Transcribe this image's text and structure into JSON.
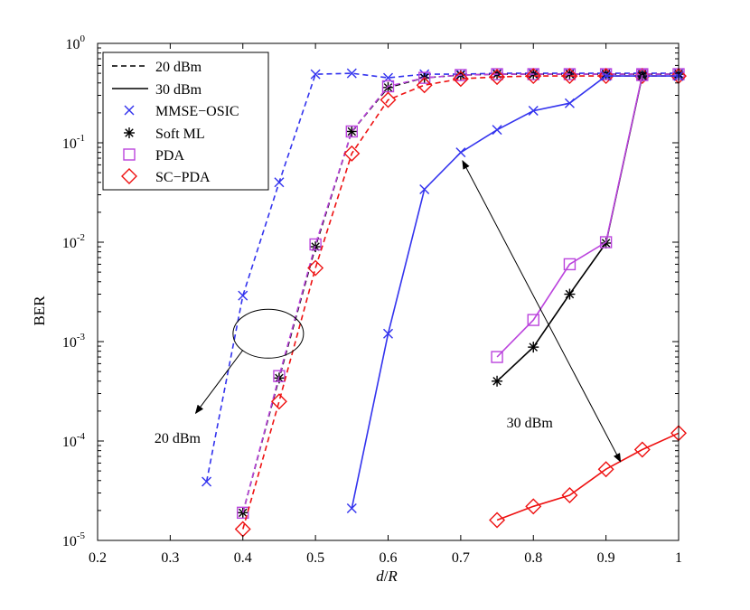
{
  "chart_data": {
    "type": "line",
    "xlabel_parts": [
      "d",
      "/",
      "R"
    ],
    "ylabel": "BER",
    "xlim": [
      0.2,
      1.0
    ],
    "ylim": [
      1e-05,
      1
    ],
    "yscale": "log",
    "grid": false,
    "legend_placement": "top-left",
    "xticks": [
      "0.2",
      "0.3",
      "0.4",
      "0.5",
      "0.6",
      "0.7",
      "0.8",
      "0.9",
      "1"
    ],
    "yticks": [
      {
        "base": "10",
        "exp": "0",
        "value": 1
      },
      {
        "base": "10",
        "exp": "-1",
        "value": 0.1
      },
      {
        "base": "10",
        "exp": "-2",
        "value": 0.01
      },
      {
        "base": "10",
        "exp": "-3",
        "value": 0.001
      },
      {
        "base": "10",
        "exp": "-4",
        "value": 0.0001
      },
      {
        "base": "10",
        "exp": "-5",
        "value": 1e-05
      }
    ],
    "legend": {
      "line_entries": [
        {
          "label": "20 dBm",
          "dash": "dashed"
        },
        {
          "label": "30 dBm",
          "dash": "solid"
        }
      ],
      "marker_entries": [
        {
          "label": "MMSE−OSIC",
          "marker": "x",
          "color": "#3333ee"
        },
        {
          "label": "Soft ML",
          "marker": "star",
          "color": "#000000"
        },
        {
          "label": "PDA",
          "marker": "square",
          "color": "#bb44dd"
        },
        {
          "label": "SC−PDA",
          "marker": "diamond",
          "color": "#ee1111"
        }
      ]
    },
    "series": [
      {
        "scheme": "MMSE−OSIC",
        "power": "20 dBm",
        "dash": "dashed",
        "marker": "x",
        "color": "#3333ee",
        "x": [
          0.35,
          0.4,
          0.45,
          0.5,
          0.55,
          0.6,
          0.65,
          0.7,
          0.75,
          0.8,
          0.85,
          0.9,
          0.95,
          1.0
        ],
        "y": [
          3.9e-05,
          0.0029,
          0.04,
          0.49,
          0.5,
          0.45,
          0.49,
          0.49,
          0.5,
          0.5,
          0.5,
          0.5,
          0.5,
          0.5
        ]
      },
      {
        "scheme": "Soft ML",
        "power": "20 dBm",
        "dash": "dashed",
        "marker": "star",
        "color": "#000000",
        "x": [
          0.4,
          0.45,
          0.5,
          0.55,
          0.6,
          0.65,
          0.7,
          0.75,
          0.8,
          0.85,
          0.9,
          0.95,
          1.0
        ],
        "y": [
          1.9e-05,
          0.00043,
          0.009,
          0.13,
          0.36,
          0.45,
          0.48,
          0.49,
          0.49,
          0.49,
          0.49,
          0.49,
          0.49
        ]
      },
      {
        "scheme": "PDA",
        "power": "20 dBm",
        "dash": "dashed",
        "marker": "square",
        "color": "#bb44dd",
        "x": [
          0.4,
          0.45,
          0.5,
          0.55,
          0.6,
          0.65,
          0.7,
          0.75,
          0.8,
          0.85,
          0.9,
          0.95,
          1.0
        ],
        "y": [
          1.9e-05,
          0.00045,
          0.0095,
          0.13,
          0.37,
          0.45,
          0.48,
          0.49,
          0.49,
          0.49,
          0.49,
          0.49,
          0.49
        ]
      },
      {
        "scheme": "SC−PDA",
        "power": "20 dBm",
        "dash": "dashed",
        "marker": "diamond",
        "color": "#ee1111",
        "x": [
          0.4,
          0.45,
          0.5,
          0.55,
          0.6,
          0.65,
          0.7,
          0.75,
          0.8,
          0.85,
          0.9,
          0.95,
          1.0
        ],
        "y": [
          1.3e-05,
          0.00025,
          0.0055,
          0.078,
          0.27,
          0.38,
          0.44,
          0.46,
          0.47,
          0.47,
          0.47,
          0.47,
          0.47
        ]
      },
      {
        "scheme": "MMSE−OSIC",
        "power": "30 dBm",
        "dash": "solid",
        "marker": "x",
        "color": "#3333ee",
        "x": [
          0.55,
          0.6,
          0.65,
          0.7,
          0.75,
          0.8,
          0.85,
          0.9,
          0.95,
          1.0
        ],
        "y": [
          2.1e-05,
          0.0012,
          0.034,
          0.08,
          0.135,
          0.21,
          0.25,
          0.47,
          0.47,
          0.47
        ]
      },
      {
        "scheme": "Soft ML",
        "power": "30 dBm",
        "dash": "solid",
        "marker": "star",
        "color": "#000000",
        "x": [
          0.75,
          0.8,
          0.85,
          0.9,
          0.95
        ],
        "y": [
          0.0004,
          0.00088,
          0.003,
          0.0098,
          0.47
        ]
      },
      {
        "scheme": "PDA",
        "power": "30 dBm",
        "dash": "solid",
        "marker": "square",
        "color": "#bb44dd",
        "x": [
          0.75,
          0.8,
          0.85,
          0.9,
          0.95
        ],
        "y": [
          0.0007,
          0.00165,
          0.006,
          0.01,
          0.48
        ]
      },
      {
        "scheme": "SC−PDA",
        "power": "30 dBm",
        "dash": "solid",
        "marker": "diamond",
        "color": "#ee1111",
        "x": [
          0.75,
          0.8,
          0.85,
          0.9,
          0.95,
          1.0
        ],
        "y": [
          1.6e-05,
          2.2e-05,
          2.85e-05,
          5.2e-05,
          8.2e-05,
          0.00012
        ]
      }
    ],
    "annotations": [
      {
        "text": "20 dBm",
        "ellipse_center": [
          0.435,
          0.0012
        ],
        "arrow_to": [
          0.335,
          0.00019
        ],
        "text_at": [
          0.31,
          0.00014
        ]
      },
      {
        "text": "30 dBm",
        "arrow_from": [
          0.7,
          0.078
        ],
        "arrow_to": [
          0.92,
          6.2e-05
        ],
        "text_at": [
          0.795,
          0.00033
        ]
      }
    ]
  }
}
